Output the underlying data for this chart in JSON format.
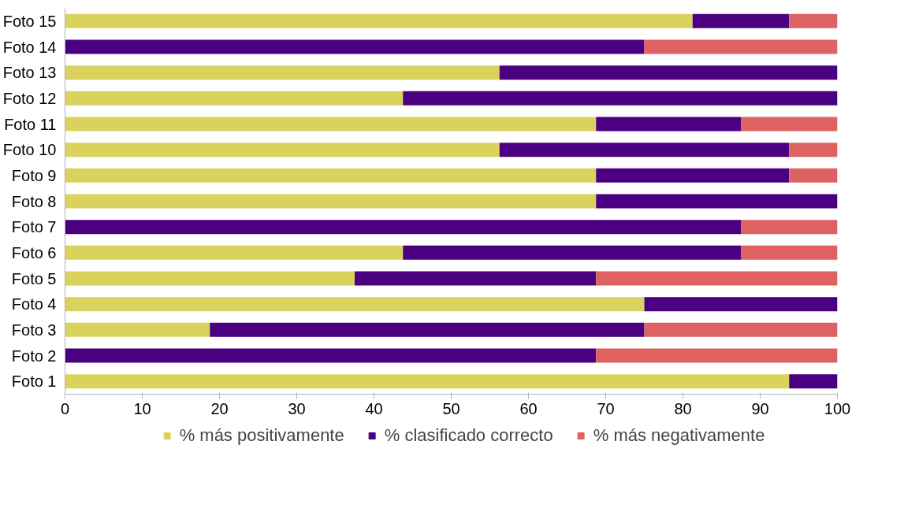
{
  "chart_data": {
    "type": "bar",
    "orientation": "horizontal",
    "stacked": true,
    "categories": [
      "Foto 15",
      "Foto 14",
      "Foto 13",
      "Foto 12",
      "Foto 11",
      "Foto 10",
      "Foto 9",
      "Foto 8",
      "Foto 7",
      "Foto 6",
      "Foto 5",
      "Foto 4",
      "Foto 3",
      "Foto 2",
      "Foto 1"
    ],
    "series": [
      {
        "name": "% más positivamente",
        "color": "#d9d35e",
        "values": [
          81.25,
          0,
          56.25,
          43.75,
          68.75,
          56.25,
          68.75,
          68.75,
          0,
          43.75,
          37.5,
          75,
          18.75,
          0,
          93.75
        ]
      },
      {
        "name": "% clasificado correcto",
        "color": "#4b0082",
        "values": [
          12.5,
          75,
          43.75,
          56.25,
          18.75,
          37.5,
          25,
          31.25,
          87.5,
          43.75,
          31.25,
          25,
          56.25,
          68.75,
          6.25
        ]
      },
      {
        "name": "% más negativamente",
        "color": "#de6262",
        "values": [
          6.25,
          25,
          0,
          0,
          12.5,
          6.25,
          6.25,
          0,
          12.5,
          12.5,
          31.25,
          0,
          25,
          31.25,
          0
        ]
      }
    ],
    "xlim": [
      0,
      100
    ],
    "xticks": [
      0,
      10,
      20,
      30,
      40,
      50,
      60,
      70,
      80,
      90,
      100
    ],
    "grid": false,
    "legend": "bottom"
  }
}
